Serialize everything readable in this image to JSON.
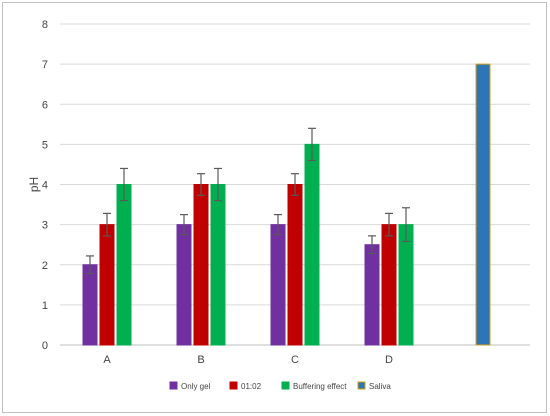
{
  "chart_data": {
    "type": "bar",
    "title": "",
    "xlabel": "",
    "ylabel": "pH",
    "ylim": [
      0,
      8
    ],
    "yticks": [
      0,
      1,
      2,
      3,
      4,
      5,
      6,
      7,
      8
    ],
    "grid": true,
    "legend_position": "bottom",
    "categories": [
      "A",
      "B",
      "C",
      "D",
      ""
    ],
    "series": [
      {
        "name": "Only gel",
        "color": "#7030a0",
        "border": "#7030a0",
        "values": [
          2,
          3,
          3,
          2.5,
          null
        ],
        "errors": [
          0.22,
          0.25,
          0.25,
          0.22,
          null
        ]
      },
      {
        "name": "01:02",
        "color": "#c00000",
        "border": "#c00000",
        "values": [
          3,
          4,
          4,
          3,
          null
        ],
        "errors": [
          0.28,
          0.27,
          0.27,
          0.28,
          null
        ]
      },
      {
        "name": "Buffering effect",
        "color": "#00b050",
        "border": "#00b050",
        "values": [
          4,
          4,
          5,
          3,
          null
        ],
        "errors": [
          0.4,
          0.4,
          0.4,
          0.42,
          null
        ]
      },
      {
        "name": "Saliva",
        "color": "#2e75b6",
        "border": "#d4a017",
        "values": [
          null,
          null,
          null,
          null,
          7
        ],
        "errors": [
          null,
          null,
          null,
          null,
          null
        ]
      }
    ]
  }
}
